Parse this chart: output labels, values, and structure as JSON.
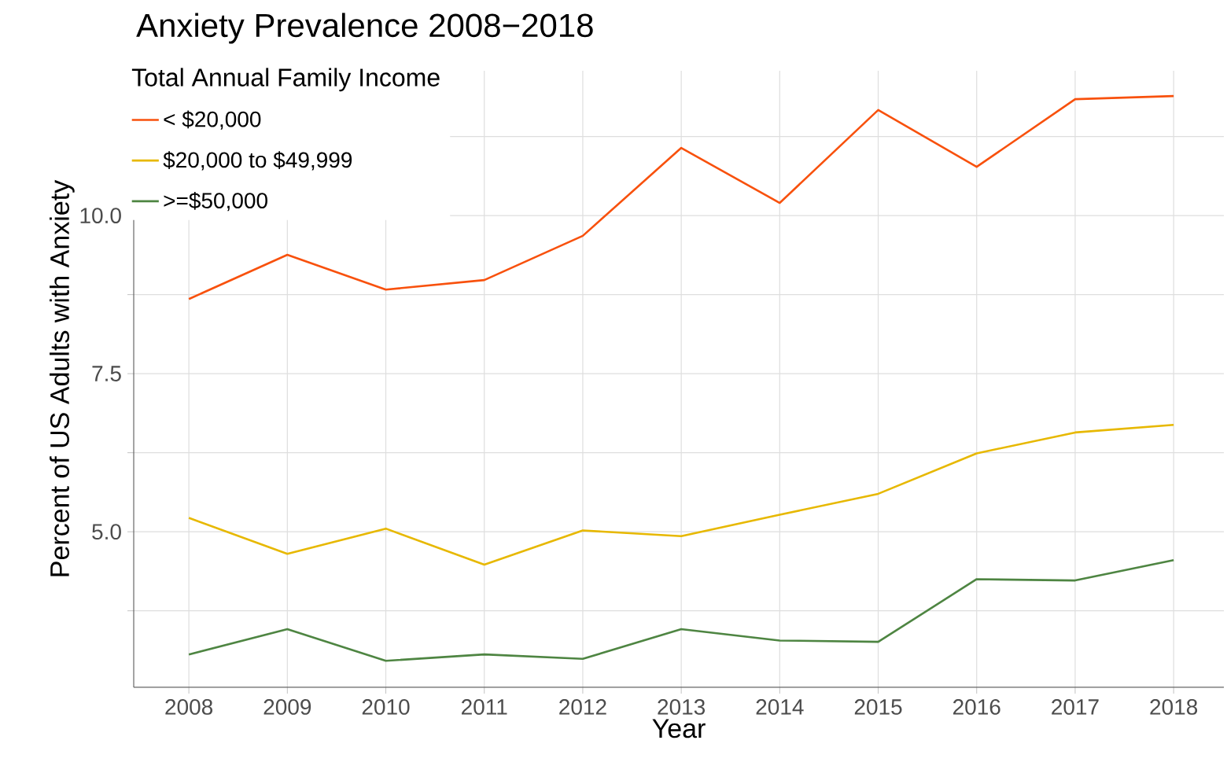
{
  "chart_data": {
    "type": "line",
    "title": "Anxiety Prevalence 2008−2018",
    "xlabel": "Year",
    "ylabel": "Percent of US Adults with Anxiety",
    "legend_title": "Total Annual Family Income",
    "x": [
      2008,
      2009,
      2010,
      2011,
      2012,
      2013,
      2014,
      2015,
      2016,
      2017,
      2018
    ],
    "series": [
      {
        "name": "< $20,000",
        "color": "#f8510d",
        "values": [
          8.68,
          9.38,
          8.83,
          8.98,
          9.68,
          11.07,
          10.2,
          11.67,
          10.77,
          11.84,
          11.89
        ]
      },
      {
        "name": "$20,000 to $49,999",
        "color": "#e7b800",
        "values": [
          5.22,
          4.65,
          5.05,
          4.48,
          5.02,
          4.93,
          5.27,
          5.6,
          6.24,
          6.57,
          6.69
        ]
      },
      {
        "name": ">=$50,000",
        "color": "#4e8542",
        "values": [
          3.06,
          3.46,
          2.96,
          3.06,
          2.99,
          3.46,
          3.28,
          3.26,
          4.25,
          4.23,
          4.55
        ]
      }
    ],
    "xlim": [
      2007.44,
      2018.51
    ],
    "ylim": [
      2.54,
      12.29
    ],
    "xticks": [
      2008,
      2009,
      2010,
      2011,
      2012,
      2013,
      2014,
      2015,
      2016,
      2017,
      2018
    ],
    "yticks": [
      {
        "value": 3.75,
        "label": null
      },
      {
        "value": 5,
        "label": "5.0"
      },
      {
        "value": 6.25,
        "label": null
      },
      {
        "value": 7.5,
        "label": "7.5"
      },
      {
        "value": 8.75,
        "label": null
      },
      {
        "value": 10,
        "label": "10.0"
      },
      {
        "value": 11.25,
        "label": null
      }
    ],
    "grid": true,
    "legend": "top left",
    "marker": "none",
    "line_style": "solid"
  }
}
